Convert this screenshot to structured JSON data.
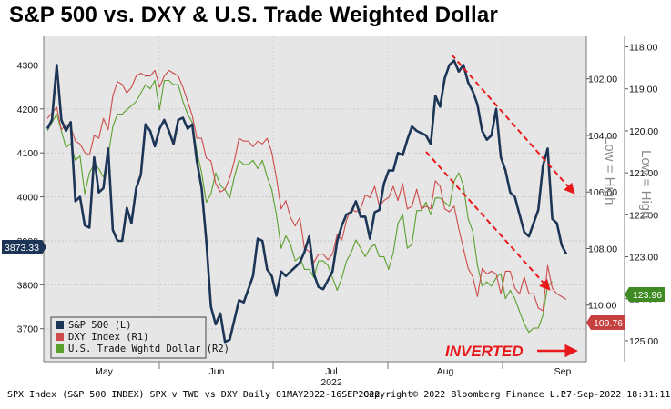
{
  "header": {
    "title": "S&P 500 vs. DXY & U.S. Trade Weighted Dollar"
  },
  "footer": {
    "left": "SPX Index (S&P 500 INDEX) SPX v TWD vs DXY  Daily 01MAY2022-16SEP2022",
    "copyright": "Copyright© 2022 Bloomberg Finance L.P.",
    "timestamp": "17-Sep-2022 18:31:11"
  },
  "annotations": {
    "inverted": "INVERTED",
    "low_high": "Low = High"
  },
  "colors": {
    "background": "#e6e6e6",
    "spx": "#1c3557",
    "dxy": "#cc4b4b",
    "twd": "#5aa02c",
    "arrow": "#e8191b",
    "spx_label": "#1c3557",
    "dxy_label": "#c6403f",
    "twd_label": "#3f8a22"
  },
  "chart_data": {
    "type": "line",
    "xlabel": "2022",
    "x_ticks": [
      "May",
      "Jun",
      "Jul",
      "Aug",
      "Sep"
    ],
    "left_axis": {
      "ticks": [
        3700,
        3800,
        3900,
        4000,
        4100,
        4200,
        4300
      ],
      "range": [
        3625,
        4365
      ]
    },
    "r1_axis": {
      "ticks": [
        "102.00",
        "104.00",
        "106.00",
        "108.00",
        "110.00"
      ],
      "range": [
        112.0,
        100.5
      ],
      "inverted": true
    },
    "r2_axis": {
      "ticks": [
        "118.00",
        "119.00",
        "120.00",
        "121.00",
        "122.00",
        "123.00",
        "124.00",
        "125.00"
      ],
      "range": [
        125.5,
        117.75
      ],
      "inverted": true
    },
    "last_values": {
      "spx": "3873.33",
      "dxy": "109.76",
      "twd": "123.96"
    },
    "legend_position": "bottom-left",
    "series": [
      {
        "name": "S&P 500 (L)",
        "axis": "left",
        "values": [
          4155,
          4175,
          4300,
          4175,
          4150,
          4170,
          3990,
          4000,
          3935,
          3930,
          4090,
          4010,
          4020,
          4110,
          3925,
          3900,
          3900,
          3975,
          3940,
          4020,
          4050,
          4165,
          4150,
          4115,
          4155,
          4175,
          4150,
          4120,
          4175,
          4180,
          4155,
          4165,
          4080,
          4020,
          3900,
          3750,
          3710,
          3735,
          3670,
          3675,
          3720,
          3765,
          3760,
          3790,
          3820,
          3905,
          3900,
          3835,
          3820,
          3775,
          3830,
          3820,
          3830,
          3840,
          3850,
          3875,
          3910,
          3825,
          3795,
          3790,
          3810,
          3830,
          3900,
          3935,
          3960,
          3965,
          3990,
          3955,
          3955,
          3905,
          3965,
          3970,
          4030,
          4060,
          4060,
          4100,
          4095,
          4130,
          4160,
          4150,
          4145,
          4140,
          4120,
          4230,
          4205,
          4270,
          4300,
          4310,
          4285,
          4300,
          4260,
          4240,
          4210,
          4150,
          4130,
          4140,
          4200,
          4090,
          4060,
          4010,
          4000,
          3960,
          3920,
          3910,
          3940,
          3970,
          4070,
          4110,
          3950,
          3940,
          3890,
          3870
        ]
      },
      {
        "name": "DXY Index (R1)",
        "axis": "r1",
        "values": [
          103.4,
          103.2,
          103.0,
          103.8,
          103.6,
          103.7,
          104.2,
          104.3,
          104.6,
          104.7,
          104.0,
          104.1,
          103.4,
          103.8,
          102.6,
          102.1,
          102.2,
          102.5,
          102.3,
          101.9,
          101.8,
          101.9,
          101.9,
          101.7,
          102.3,
          101.9,
          101.7,
          101.8,
          101.9,
          102.3,
          102.8,
          103.3,
          104.1,
          104.1,
          104.8,
          104.9,
          105.7,
          106.0,
          105.9,
          105.5,
          104.9,
          104.1,
          104.2,
          104.2,
          104.4,
          104.2,
          104.3,
          104.1,
          104.6,
          105.5,
          106.6,
          106.3,
          106.9,
          107.2,
          106.9,
          108.0,
          108.1,
          108.5,
          108.2,
          108.2,
          108.4,
          108.2,
          107.5,
          107.7,
          107.0,
          106.6,
          106.7,
          106.6,
          106.1,
          106.2,
          105.8,
          106.5,
          106.3,
          106.2,
          105.8,
          106.3,
          105.7,
          106.6,
          106.5,
          105.9,
          106.6,
          106.5,
          106.6,
          105.6,
          105.8,
          106.6,
          106.7,
          106.5,
          107.3,
          108.0,
          108.7,
          109.0,
          109.7,
          108.7,
          108.9,
          108.8,
          108.9,
          109.6,
          108.8,
          108.8,
          109.4,
          109.6,
          109.0,
          109.6,
          109.6,
          110.1,
          110.2,
          108.6,
          109.4,
          109.6,
          109.7,
          109.8
        ]
      },
      {
        "name": "U.S. Trade Wghtd Dollar (R2)",
        "axis": "r2",
        "values": [
          120.0,
          119.8,
          119.6,
          120.0,
          120.4,
          120.3,
          120.7,
          120.6,
          121.5,
          121.0,
          120.8,
          120.9,
          121.1,
          120.6,
          119.9,
          119.6,
          119.6,
          119.5,
          119.4,
          119.3,
          119.1,
          118.9,
          119.0,
          118.8,
          119.5,
          118.8,
          118.8,
          118.9,
          118.9,
          119.3,
          119.6,
          119.8,
          120.5,
          121.0,
          121.7,
          121.5,
          121.0,
          121.3,
          121.4,
          121.6,
          121.1,
          120.7,
          120.8,
          120.8,
          120.7,
          120.9,
          120.7,
          121.1,
          121.4,
          122.0,
          122.8,
          122.5,
          122.7,
          123.1,
          123.0,
          123.3,
          123.3,
          123.5,
          123.1,
          123.1,
          123.2,
          123.5,
          123.8,
          123.5,
          123.1,
          122.9,
          122.6,
          122.8,
          123.0,
          122.8,
          122.7,
          123.0,
          123.0,
          123.3,
          122.9,
          122.2,
          122.0,
          122.8,
          122.7,
          121.9,
          121.9,
          121.7,
          122.0,
          121.6,
          121.6,
          121.7,
          121.8,
          121.2,
          121.0,
          121.3,
          122.1,
          122.4,
          123.2,
          123.7,
          123.6,
          123.7,
          123.5,
          123.4,
          124.0,
          123.8,
          124.0,
          124.3,
          124.6,
          124.8,
          124.7,
          124.7,
          124.4,
          123.7,
          123.6,
          null,
          null,
          null
        ]
      }
    ]
  }
}
